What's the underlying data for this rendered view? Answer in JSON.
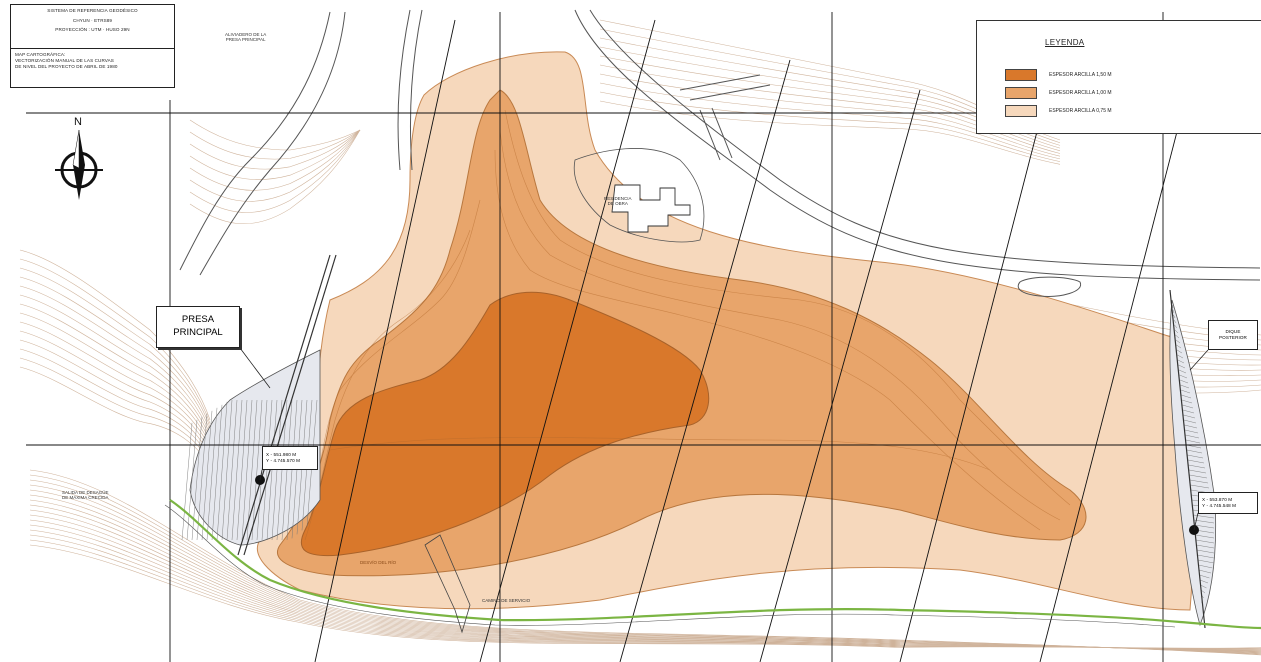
{
  "info_box": {
    "line1": "SISTEMA DE REFERENCIA GEODÉSICO",
    "line2": "CHYUN · ETRS89",
    "line3": "PROYECCIÓN : UTM · HUSO 29N",
    "line4": "MAP CARTOGRÁFICA:",
    "line5": "VECTORIZACIÓN MANUAL DE LAS CURVAS",
    "line6": "DE NIVEL DEL PROYECTO DE ABRIL DE 1980"
  },
  "legend": {
    "title": "LEYENDA",
    "items": [
      {
        "label": "ESPESOR ARCILLA 1,50 m",
        "color": "#d9782b"
      },
      {
        "label": "ESPESOR ARCILLA 1,00 m",
        "color": "#e8a56b"
      },
      {
        "label": "ESPESOR ARCILLA 0,75 m",
        "color": "#f6d8bc"
      }
    ]
  },
  "north_arrow": {
    "label": "N"
  },
  "labels": {
    "presa_principal_1": "PRESA",
    "presa_principal_2": "PRINCIPAL",
    "dique_1": "DIQUE",
    "dique_2": "POSTERIOR",
    "top_label_1": "ALIVIADERO DE LA",
    "top_label_2": "PRESA PRINCIPAL",
    "building_1": "RESIDENCIA",
    "building_2": "DE OBRA",
    "left_label_1": "SALIDA DE DESAGÜE",
    "left_label_2": "DE MÁXIMA CRECIDA",
    "bottom_label_1": "CAMINO DE SERVICIO",
    "bottom_label_2": "DESVÍO DEL RÍO"
  },
  "coords_left": {
    "x": "X - 551.980 m",
    "y": "Y - 4.745.570 m"
  },
  "coords_right": {
    "x": "X - 553.870 m",
    "y": "Y - 4.745.548 m"
  },
  "colors": {
    "dark": "#d9782b",
    "mid": "#e8a56b",
    "light": "#f6d8bc",
    "contour": "#c8aa90",
    "green": "#7bb543"
  }
}
